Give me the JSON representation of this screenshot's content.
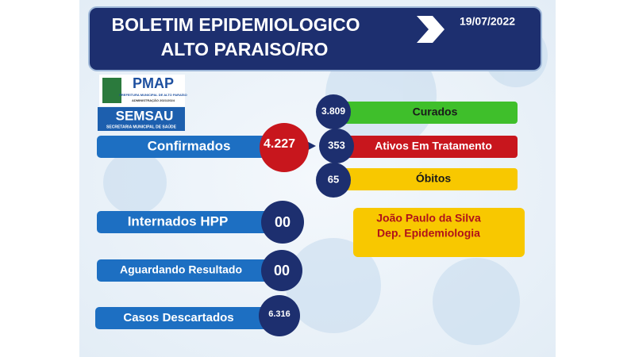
{
  "header": {
    "title_line1": "BOLETIM  EPIDEMIOLOGICO",
    "title_line2": "ALTO PARAISO/RO",
    "date": "19/07/2022"
  },
  "logos": {
    "pmap": "PMAP",
    "pmap_sub1": "PREFEITURA MUNICIPAL DE ALTO PARAÍSO",
    "pmap_sub2": "ADMINISTRAÇÃO 2021/2024",
    "semsau": "SEMSAU",
    "semsau_sub": "SECRETARIA MUNICIPAL DE SAÚDE"
  },
  "confirmed": {
    "label": "Confirmados",
    "value": "4.227"
  },
  "breakdown": [
    {
      "label": "Curados",
      "value": "3.809"
    },
    {
      "label": "Ativos Em Tratamento",
      "value": "353"
    },
    {
      "label": "Óbitos",
      "value": "65"
    }
  ],
  "others": [
    {
      "label": "Internados HPP",
      "value": "00"
    },
    {
      "label": "Aguardando Resultado",
      "value": "00"
    },
    {
      "label": "Casos Descartados",
      "value": "6.316"
    }
  ],
  "signature": {
    "name": "João Paulo da Silva",
    "role": "Dep. Epidemiologia"
  }
}
